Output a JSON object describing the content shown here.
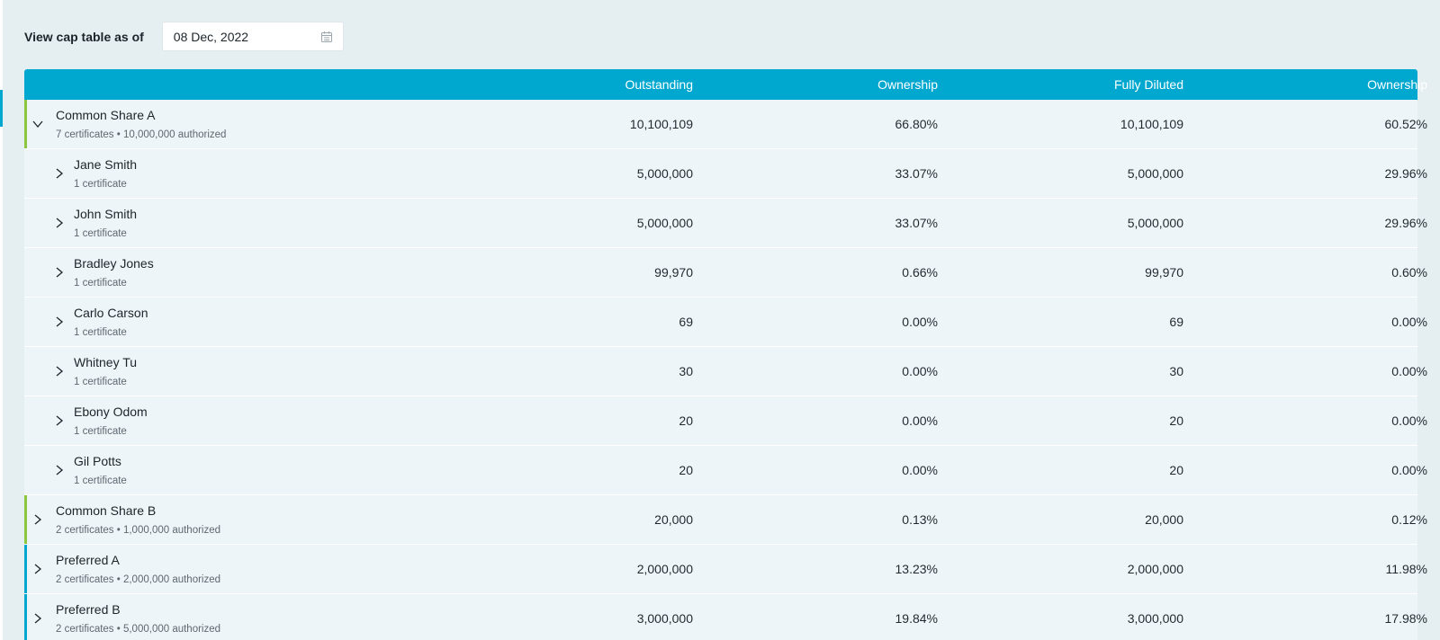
{
  "toolbar": {
    "label": "View cap table as of",
    "date_value": "08 Dec, 2022",
    "calendar_icon": "calendar-icon"
  },
  "table": {
    "columns": [
      "",
      "Outstanding",
      "Ownership",
      "Fully Diluted",
      "Ownership"
    ],
    "rows": [
      {
        "type": "group",
        "expanded": true,
        "bar_color": "#8cc63f",
        "name": "Common Share A",
        "sub": "7 certificates • 10,000,000 authorized",
        "outstanding": "10,100,109",
        "ownership": "66.80%",
        "fully_diluted": "10,100,109",
        "fd_ownership": "60.52%"
      },
      {
        "type": "holder",
        "name": "Jane Smith",
        "sub": "1 certificate",
        "outstanding": "5,000,000",
        "ownership": "33.07%",
        "fully_diluted": "5,000,000",
        "fd_ownership": "29.96%"
      },
      {
        "type": "holder",
        "name": "John Smith",
        "sub": "1 certificate",
        "outstanding": "5,000,000",
        "ownership": "33.07%",
        "fully_diluted": "5,000,000",
        "fd_ownership": "29.96%"
      },
      {
        "type": "holder",
        "name": "Bradley Jones",
        "sub": "1 certificate",
        "outstanding": "99,970",
        "ownership": "0.66%",
        "fully_diluted": "99,970",
        "fd_ownership": "0.60%"
      },
      {
        "type": "holder",
        "name": "Carlo Carson",
        "sub": "1 certificate",
        "outstanding": "69",
        "ownership": "0.00%",
        "fully_diluted": "69",
        "fd_ownership": "0.00%"
      },
      {
        "type": "holder",
        "name": "Whitney Tu",
        "sub": "1 certificate",
        "outstanding": "30",
        "ownership": "0.00%",
        "fully_diluted": "30",
        "fd_ownership": "0.00%"
      },
      {
        "type": "holder",
        "name": "Ebony Odom",
        "sub": "1 certificate",
        "outstanding": "20",
        "ownership": "0.00%",
        "fully_diluted": "20",
        "fd_ownership": "0.00%"
      },
      {
        "type": "holder",
        "name": "Gil Potts",
        "sub": "1 certificate",
        "outstanding": "20",
        "ownership": "0.00%",
        "fully_diluted": "20",
        "fd_ownership": "0.00%"
      },
      {
        "type": "group",
        "expanded": false,
        "bar_color": "#8cc63f",
        "name": "Common Share B",
        "sub": "2 certificates • 1,000,000 authorized",
        "outstanding": "20,000",
        "ownership": "0.13%",
        "fully_diluted": "20,000",
        "fd_ownership": "0.12%"
      },
      {
        "type": "group",
        "expanded": false,
        "bar_color": "#00a8cf",
        "name": "Preferred A",
        "sub": "2 certificates • 2,000,000 authorized",
        "outstanding": "2,000,000",
        "ownership": "13.23%",
        "fully_diluted": "2,000,000",
        "fd_ownership": "11.98%"
      },
      {
        "type": "group",
        "expanded": false,
        "bar_color": "#00a8cf",
        "name": "Preferred B",
        "sub": "2 certificates • 5,000,000 authorized",
        "outstanding": "3,000,000",
        "ownership": "19.84%",
        "fully_diluted": "3,000,000",
        "fd_ownership": "17.98%"
      }
    ]
  },
  "colors": {
    "header_bg": "#00a8cf",
    "common_bar": "#8cc63f",
    "preferred_bar": "#00a8cf",
    "page_bg": "#e5eef1"
  }
}
